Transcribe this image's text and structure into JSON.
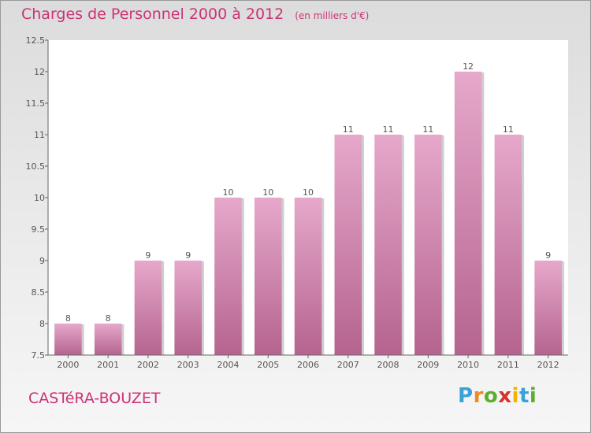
{
  "header": {
    "title": "Charges de Personnel 2000 à 2012",
    "unit": "(en milliers d'€)"
  },
  "footer": {
    "place": "CASTéRA-BOUZET",
    "logo_text": "Proxiti"
  },
  "colors": {
    "accent": "#cc3377",
    "bar_top": "#e6a8cb",
    "bar_bottom": "#b5648f"
  },
  "chart_data": {
    "type": "bar",
    "categories": [
      "2000",
      "2001",
      "2002",
      "2003",
      "2004",
      "2005",
      "2006",
      "2007",
      "2008",
      "2009",
      "2010",
      "2011",
      "2012"
    ],
    "values": [
      8,
      8,
      9,
      9,
      10,
      10,
      10,
      11,
      11,
      11,
      12,
      11,
      9
    ],
    "value_labels": [
      "8",
      "8",
      "9",
      "9",
      "10",
      "10",
      "10",
      "11",
      "11",
      "11",
      "12",
      "11",
      "9"
    ],
    "yticks": [
      "7.5",
      "8",
      "8.5",
      "9",
      "9.5",
      "10",
      "10.5",
      "11",
      "11.5",
      "12",
      "12.5"
    ],
    "ylim": [
      7.5,
      12.5
    ],
    "title": "Charges de Personnel 2000 à 2012",
    "xlabel": "",
    "ylabel": "",
    "grid": false,
    "legend": "none"
  }
}
